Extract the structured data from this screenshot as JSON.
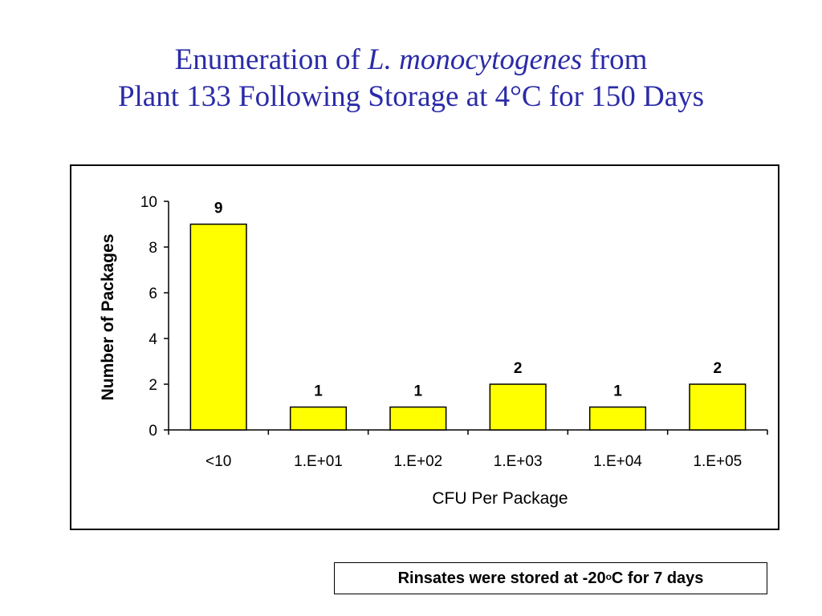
{
  "title": {
    "line1_prefix": "Enumeration of ",
    "line1_italic": "L. monocytogenes",
    "line1_suffix": " from",
    "line2": "Plant 133 Following Storage at 4°C for 150 Days"
  },
  "note": {
    "prefix": "Rinsates were stored at -20",
    "superscript": "o",
    "suffix": "C for 7 days"
  },
  "colors": {
    "title": "#2b2ba8",
    "bar_fill": "#ffff00",
    "bar_stroke": "#000000"
  },
  "chart_data": {
    "type": "bar",
    "categories": [
      "<10",
      "1.E+01",
      "1.E+02",
      "1.E+03",
      "1.E+04",
      "1.E+05"
    ],
    "values": [
      9,
      1,
      1,
      2,
      1,
      2
    ],
    "data_labels": [
      "9",
      "1",
      "1",
      "2",
      "1",
      "2"
    ],
    "title": "",
    "xlabel": "CFU Per Package",
    "ylabel": "Number of Packages",
    "ylim": [
      0,
      10
    ],
    "yticks": [
      0,
      2,
      4,
      6,
      8,
      10
    ],
    "grid": false,
    "legend": "none"
  }
}
